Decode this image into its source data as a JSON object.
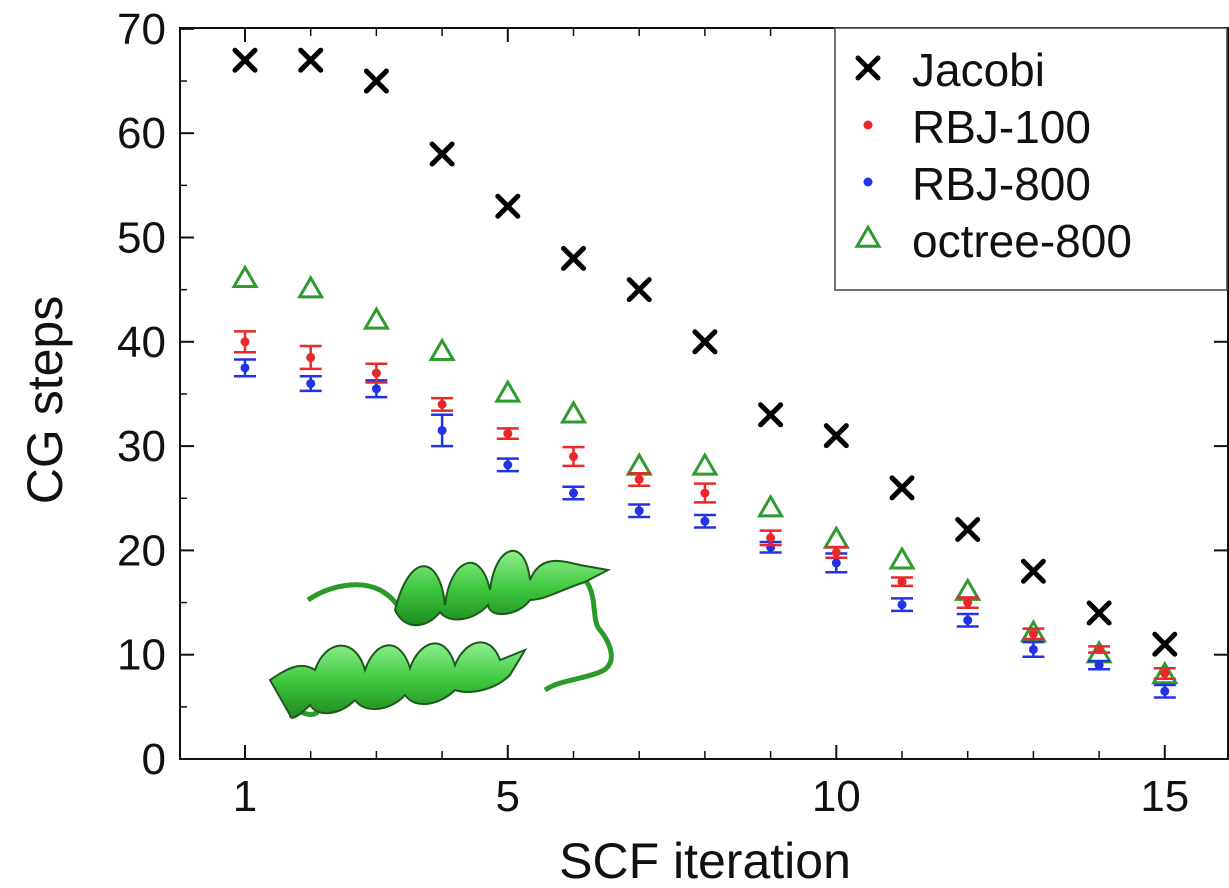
{
  "chart_data": {
    "type": "scatter",
    "title": "",
    "xlabel": "SCF iteration",
    "ylabel": "CG steps",
    "xlim": [
      0,
      15.5
    ],
    "ylim": [
      0,
      70
    ],
    "xticks": [
      1,
      5,
      10,
      15
    ],
    "yticks": [
      0,
      10,
      20,
      30,
      40,
      50,
      60,
      70
    ],
    "x_minor_ticks": [
      1,
      2,
      3,
      4,
      5,
      6,
      7,
      8,
      9,
      10,
      11,
      12,
      13,
      14,
      15
    ],
    "grid": false,
    "legend_position": "top-right",
    "x": [
      1,
      2,
      3,
      4,
      5,
      6,
      7,
      8,
      9,
      10,
      11,
      12,
      13,
      14,
      15
    ],
    "series": [
      {
        "name": "Jacobi",
        "marker": "x",
        "color": "#000000",
        "values": [
          67,
          67,
          65,
          58,
          53,
          48,
          45,
          40,
          33,
          31,
          26,
          22,
          18,
          14,
          11
        ]
      },
      {
        "name": "RBJ-100",
        "marker": "dot",
        "color": "#e8282a",
        "values": [
          40,
          38.5,
          37,
          34,
          31.2,
          29,
          26.8,
          25.5,
          21.2,
          19.8,
          17,
          15,
          12,
          10.5,
          8.2
        ],
        "errors": [
          1.0,
          1.1,
          0.9,
          0.6,
          0.5,
          0.9,
          0.6,
          0.9,
          0.7,
          0.5,
          0.4,
          0.5,
          0.5,
          0.3,
          0.5
        ]
      },
      {
        "name": "RBJ-800",
        "marker": "dot",
        "color": "#2233e6",
        "values": [
          37.5,
          36,
          35.5,
          31.5,
          28.2,
          25.5,
          23.8,
          22.8,
          20.3,
          18.8,
          14.8,
          13.3,
          10.5,
          9,
          6.5
        ],
        "errors": [
          0.8,
          0.7,
          0.8,
          1.5,
          0.6,
          0.6,
          0.6,
          0.6,
          0.5,
          0.9,
          0.6,
          0.6,
          0.7,
          0.4,
          0.6
        ]
      },
      {
        "name": "octree-800",
        "marker": "triangle-open",
        "color": "#2f9a2f",
        "values": [
          46,
          45,
          42,
          39,
          35,
          33,
          28,
          28,
          24,
          21,
          19,
          16,
          12,
          10,
          8
        ]
      }
    ]
  }
}
